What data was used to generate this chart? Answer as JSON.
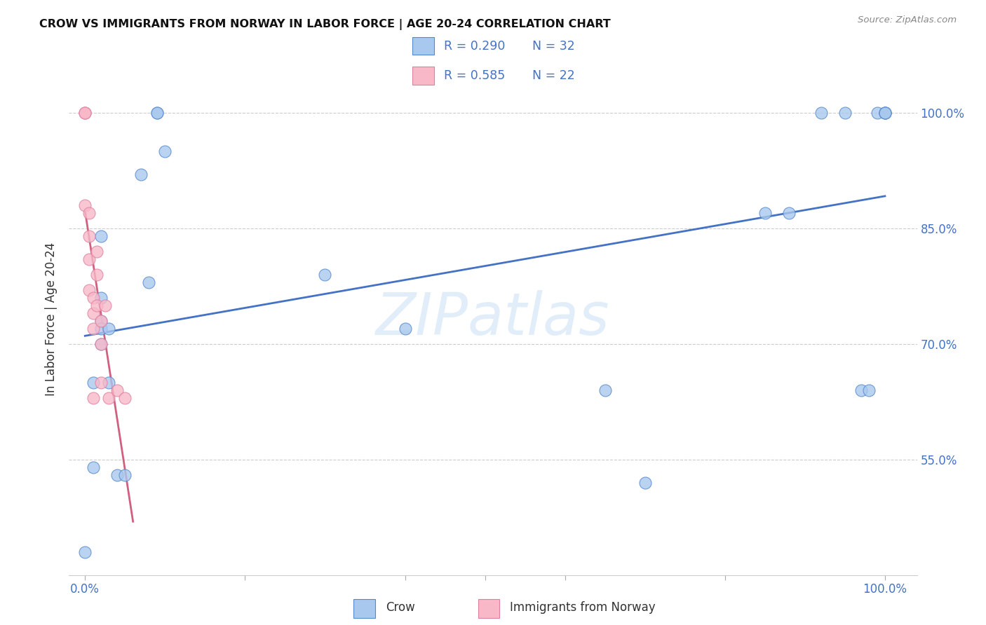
{
  "title": "CROW VS IMMIGRANTS FROM NORWAY IN LABOR FORCE | AGE 20-24 CORRELATION CHART",
  "source": "Source: ZipAtlas.com",
  "ylabel": "In Labor Force | Age 20-24",
  "xlim": [
    -0.02,
    1.04
  ],
  "ylim": [
    0.4,
    1.065
  ],
  "yticks": [
    0.55,
    0.7,
    0.85,
    1.0
  ],
  "ytick_labels": [
    "55.0%",
    "70.0%",
    "85.0%",
    "100.0%"
  ],
  "crow_color": "#a8c8ee",
  "crow_edge_color": "#5588cc",
  "norway_color": "#f8b8c8",
  "norway_edge_color": "#e080a0",
  "crow_line_color": "#4472c4",
  "norway_line_color": "#d06080",
  "legend_text_color": "#4472c4",
  "crow_R": "R = 0.290",
  "crow_N": "N = 32",
  "norway_R": "R = 0.585",
  "norway_N": "N = 22",
  "axis_tick_color": "#4472c4",
  "watermark": "ZIPatlas",
  "crow_x": [
    0.0,
    0.01,
    0.01,
    0.02,
    0.02,
    0.02,
    0.02,
    0.02,
    0.03,
    0.03,
    0.04,
    0.05,
    0.07,
    0.08,
    0.09,
    0.09,
    0.1,
    0.3,
    0.4,
    0.65,
    0.7,
    0.85,
    0.88,
    0.92,
    0.95,
    0.97,
    0.98,
    0.99,
    1.0,
    1.0,
    1.0,
    1.0
  ],
  "crow_y": [
    0.43,
    0.65,
    0.54,
    0.84,
    0.76,
    0.73,
    0.72,
    0.7,
    0.72,
    0.65,
    0.53,
    0.53,
    0.92,
    0.78,
    1.0,
    1.0,
    0.95,
    0.79,
    0.72,
    0.64,
    0.52,
    0.87,
    0.87,
    1.0,
    1.0,
    0.64,
    0.64,
    1.0,
    1.0,
    1.0,
    1.0,
    1.0
  ],
  "norway_x": [
    0.0,
    0.0,
    0.0,
    0.0,
    0.005,
    0.005,
    0.005,
    0.005,
    0.01,
    0.01,
    0.01,
    0.01,
    0.015,
    0.015,
    0.015,
    0.02,
    0.02,
    0.02,
    0.025,
    0.03,
    0.04,
    0.05
  ],
  "norway_y": [
    1.0,
    1.0,
    1.0,
    0.88,
    0.87,
    0.84,
    0.81,
    0.77,
    0.76,
    0.74,
    0.72,
    0.63,
    0.82,
    0.79,
    0.75,
    0.73,
    0.7,
    0.65,
    0.75,
    0.63,
    0.64,
    0.63
  ],
  "bg_color": "#ffffff",
  "grid_color": "#cccccc",
  "scatter_size": 150
}
